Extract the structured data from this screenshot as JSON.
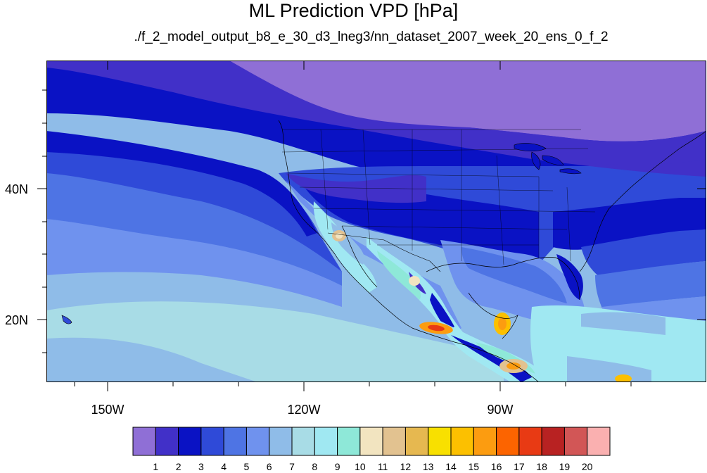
{
  "title": "ML Prediction VPD [hPa]",
  "subtitle": "./f_2_model_output_b8_e_30_d3_lneg3/nn_dataset_2007_week_20_ens_0_f_2",
  "axes": {
    "lon_labels": [
      "150W",
      "120W",
      "90W"
    ],
    "lat_labels": [
      "40N",
      "20N"
    ]
  },
  "colorbar": {
    "labels": [
      "1",
      "2",
      "3",
      "4",
      "5",
      "6",
      "7",
      "8",
      "9",
      "10",
      "11",
      "12",
      "13",
      "14",
      "15",
      "16",
      "17",
      "18",
      "19",
      "20"
    ],
    "colors": [
      "#8f6fd6",
      "#4130c8",
      "#0a12c4",
      "#2f4ad8",
      "#4e74e4",
      "#6f92ee",
      "#8fbce8",
      "#a8dce6",
      "#a0e8f2",
      "#8ee8d8",
      "#f2e4c0",
      "#e2c290",
      "#e6b850",
      "#f8e000",
      "#fcc000",
      "#fc9c10",
      "#fc6400",
      "#e83a14",
      "#b82222",
      "#d25656",
      "#fab0b0"
    ]
  }
}
